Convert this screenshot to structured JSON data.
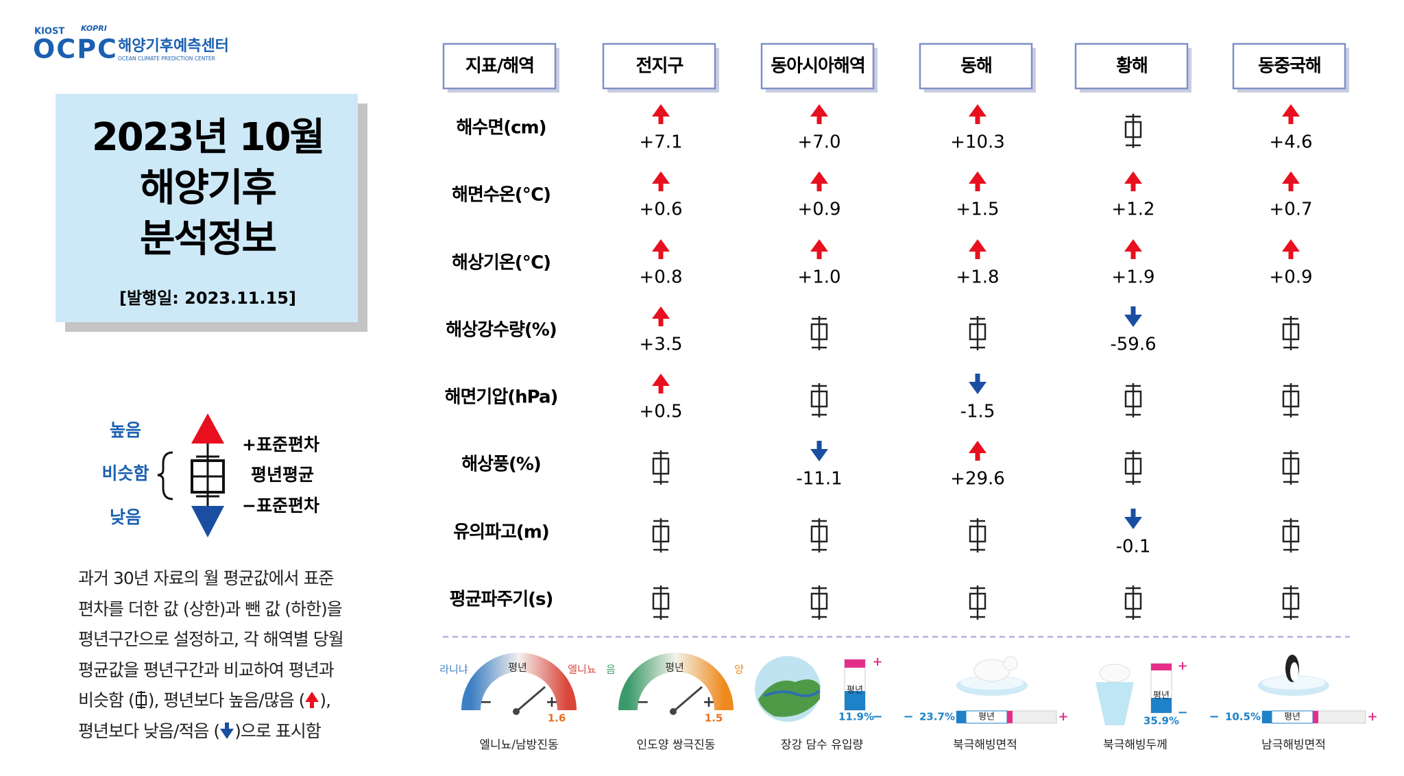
{
  "logo": {
    "org": "KIOST",
    "org2": "KOPRI",
    "name": "OCPC",
    "korean": "해양기후예측센터",
    "english": "OCEAN CLIMATE PREDICTION CENTER"
  },
  "title": {
    "lines": [
      "2023년 10월",
      "해양기후",
      "분석정보"
    ],
    "date": "[발행일: 2023.11.15]"
  },
  "legend": {
    "high": "높음",
    "similar": "비슷함",
    "low": "낮음",
    "plus": "+표준편차",
    "mean": "평년평균",
    "minus": "−표준편차"
  },
  "description": [
    [
      "과거 30년 자료의 월 평균값에서 표준"
    ],
    [
      "편차를 더한 값 (상한)과 뺀 값 (하한)을"
    ],
    [
      "평년구간으로 설정하고, 각 해역별 당월"
    ],
    [
      "평균값을 평년구간과 비교하여 평년과"
    ],
    [
      "비슷함 (",
      "), 평년보다 높음/많음 (",
      "),"
    ],
    [
      "평년보다 낮음/적음 (",
      ")으로 표시함"
    ]
  ],
  "table": {
    "header": [
      "지표/해역",
      "전지구",
      "동아시아해역",
      "동해",
      "황해",
      "동중국해"
    ],
    "rows": [
      {
        "label": "해수면(cm)",
        "cells": [
          {
            "trend": "up",
            "value": "+7.1"
          },
          {
            "trend": "up",
            "value": "+7.0"
          },
          {
            "trend": "up",
            "value": "+10.3"
          },
          {
            "trend": "normal"
          },
          {
            "trend": "up",
            "value": "+4.6"
          }
        ]
      },
      {
        "label": "해면수온(℃)",
        "cells": [
          {
            "trend": "up",
            "value": "+0.6"
          },
          {
            "trend": "up",
            "value": "+0.9"
          },
          {
            "trend": "up",
            "value": "+1.5"
          },
          {
            "trend": "up",
            "value": "+1.2"
          },
          {
            "trend": "up",
            "value": "+0.7"
          }
        ]
      },
      {
        "label": "해상기온(℃)",
        "cells": [
          {
            "trend": "up",
            "value": "+0.8"
          },
          {
            "trend": "up",
            "value": "+1.0"
          },
          {
            "trend": "up",
            "value": "+1.8"
          },
          {
            "trend": "up",
            "value": "+1.9"
          },
          {
            "trend": "up",
            "value": "+0.9"
          }
        ]
      },
      {
        "label": "해상강수량(%)",
        "cells": [
          {
            "trend": "up",
            "value": "+3.5"
          },
          {
            "trend": "normal"
          },
          {
            "trend": "normal"
          },
          {
            "trend": "down",
            "value": "-59.6"
          },
          {
            "trend": "normal"
          }
        ]
      },
      {
        "label": "해면기압(hPa)",
        "cells": [
          {
            "trend": "up",
            "value": "+0.5"
          },
          {
            "trend": "normal"
          },
          {
            "trend": "down",
            "value": "-1.5"
          },
          {
            "trend": "normal"
          },
          {
            "trend": "normal"
          }
        ]
      },
      {
        "label": "해상풍(%)",
        "cells": [
          {
            "trend": "normal"
          },
          {
            "trend": "down",
            "value": "-11.1"
          },
          {
            "trend": "up",
            "value": "+29.6"
          },
          {
            "trend": "normal"
          },
          {
            "trend": "normal"
          }
        ]
      },
      {
        "label": "유의파고(m)",
        "cells": [
          {
            "trend": "normal"
          },
          {
            "trend": "normal"
          },
          {
            "trend": "normal"
          },
          {
            "trend": "down",
            "value": "-0.1"
          },
          {
            "trend": "normal"
          }
        ]
      },
      {
        "label": "평균파주기(s)",
        "cells": [
          {
            "trend": "normal"
          },
          {
            "trend": "normal"
          },
          {
            "trend": "normal"
          },
          {
            "trend": "normal"
          },
          {
            "trend": "normal"
          }
        ]
      }
    ]
  },
  "indices": [
    {
      "label": "엘니뇨/남방진동",
      "left": "라니냐",
      "mid": "평년",
      "right": "엘니뇨",
      "minus": "−",
      "plus": "+",
      "value": "1.6"
    },
    {
      "label": "인도양 쌍극진동",
      "left": "음",
      "mid": "평년",
      "right": "양",
      "minus": "−",
      "plus": "+",
      "value": "1.5"
    },
    {
      "label": "장강 담수 유입량",
      "mid": "평년",
      "value": "11.9%",
      "minus": "−",
      "plus": "+"
    },
    {
      "label": "북극해빙면적",
      "mid": "평년",
      "value": "23.7%",
      "minus": "−",
      "plus": "+"
    },
    {
      "label": "북극해빙두께",
      "mid": "평년",
      "value": "35.9%",
      "minus": "−",
      "plus": "+"
    },
    {
      "label": "남극해빙면적",
      "mid": "평년",
      "value": "10.5%",
      "minus": "−",
      "plus": "+"
    }
  ]
}
